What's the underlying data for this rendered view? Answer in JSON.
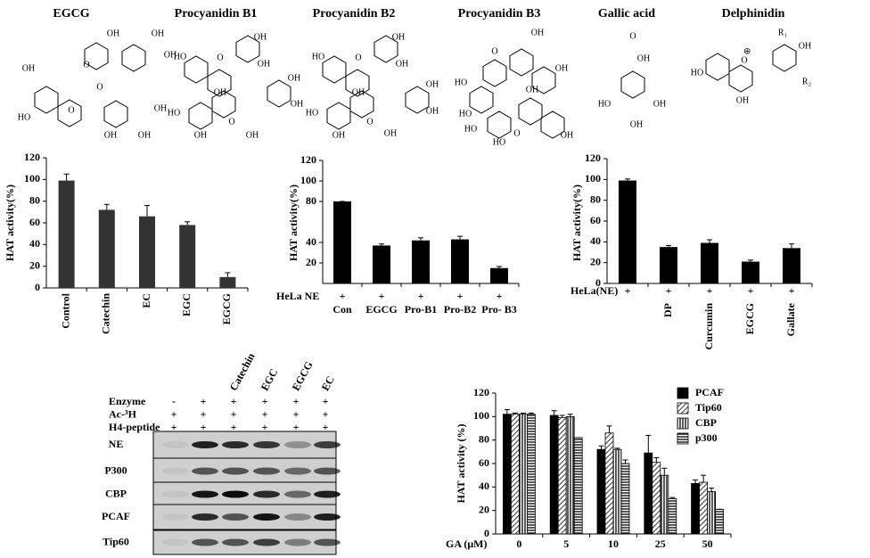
{
  "structures": [
    {
      "name": "EGCG",
      "labels": [
        "OH",
        "OH",
        "OH",
        "O",
        "O",
        "OH",
        "HO",
        "O",
        "OH",
        "OH",
        "OH"
      ]
    },
    {
      "name": "Procyanidin B1",
      "labels": [
        "OH",
        "OH",
        "HO",
        "O",
        "OH",
        "HO",
        "O",
        "OH",
        "OH",
        "OH",
        "OH"
      ]
    },
    {
      "name": "Procyanidin B2",
      "labels": [
        "OH",
        "OH",
        "HO",
        "O",
        "OH",
        "HO",
        "O",
        "OH",
        "OH",
        "OH",
        "OH"
      ]
    },
    {
      "name": "Procyanidin B3",
      "labels": [
        "OH",
        "O",
        "OH",
        "HO",
        "HO",
        "OH",
        "O",
        "OH",
        "HO",
        "HO"
      ]
    },
    {
      "name": "Gallic acid",
      "labels": [
        "O",
        "OH",
        "HO",
        "OH",
        "OH"
      ]
    },
    {
      "name": "Delphinidin",
      "labels": [
        "R₁",
        "OH",
        "HO",
        "O",
        "R₂",
        "OH"
      ]
    }
  ],
  "chart_data": [
    {
      "type": "bar",
      "ylabel": "HAT activity(%)",
      "categories": [
        "Control",
        "Catechin",
        "EC",
        "EGC",
        "EGCG"
      ],
      "values": [
        99,
        72,
        66,
        58,
        10
      ],
      "errors": [
        6,
        5,
        10,
        3,
        4
      ],
      "color": "#333333",
      "ylim": [
        0,
        120
      ],
      "yticks": [
        0,
        20,
        40,
        60,
        80,
        100,
        120
      ]
    },
    {
      "type": "bar",
      "ylabel": "HAT activity(%)",
      "row_label": "HeLa NE",
      "row_signs": [
        "+",
        "+",
        "+",
        "+",
        "+"
      ],
      "categories": [
        "Con",
        "EGCG",
        "Pro-B1",
        "Pro-B2",
        "Pro- B3"
      ],
      "values": [
        80,
        37,
        42,
        43,
        15
      ],
      "errors": [
        0,
        1.5,
        2.5,
        3,
        1.5
      ],
      "color": "#000000",
      "ylim": [
        0,
        120
      ],
      "yticks": [
        20,
        40,
        80,
        100,
        120
      ]
    },
    {
      "type": "bar",
      "ylabel": "HAT activity(%)",
      "row_label": "HeLa(NE)",
      "row_signs": [
        "+",
        "+",
        "+",
        "+",
        "+"
      ],
      "categories": [
        null,
        "DP",
        "Curcumin",
        "EGCG",
        "Gallate"
      ],
      "values": [
        99,
        35,
        39,
        21,
        34
      ],
      "errors": [
        1.5,
        1.5,
        3,
        1.5,
        4
      ],
      "color": "#000000",
      "ylim": [
        0,
        120
      ],
      "yticks": [
        0,
        20,
        40,
        60,
        80,
        100,
        120
      ]
    },
    {
      "type": "grouped_bar",
      "ylabel": "HAT activity (%)",
      "xlabel": "GA (μM)",
      "categories": [
        "0",
        "5",
        "10",
        "25",
        "50"
      ],
      "series": [
        {
          "name": "PCAF",
          "color": "#000000",
          "pattern": "solid",
          "values": [
            102,
            101,
            72,
            69,
            43
          ],
          "errors": [
            4,
            4,
            3,
            15,
            3
          ]
        },
        {
          "name": "Tip60",
          "color": "#000000",
          "pattern": "diagonal",
          "values": [
            102,
            99,
            86,
            61,
            44
          ],
          "errors": [
            1,
            2,
            6,
            4,
            6
          ]
        },
        {
          "name": "CBP",
          "color": "#000000",
          "pattern": "vertical",
          "values": [
            102,
            100,
            72,
            50,
            36
          ],
          "errors": [
            1,
            2,
            1,
            6,
            3
          ]
        },
        {
          "name": "p300",
          "color": "#000000",
          "pattern": "horizontal",
          "values": [
            102,
            82,
            60,
            30,
            21
          ],
          "errors": [
            1,
            0,
            3,
            1,
            0
          ]
        }
      ],
      "ylim": [
        0,
        120
      ],
      "yticks": [
        0,
        20,
        40,
        60,
        80,
        100,
        120
      ]
    }
  ],
  "blot": {
    "treatments": [
      "Catechin",
      "EGC",
      "EGCG",
      "EC"
    ],
    "conditions": [
      {
        "label": "Enzyme",
        "signs": [
          "-",
          "+",
          "+",
          "+",
          "+",
          "+"
        ]
      },
      {
        "label": "Ac-³H",
        "signs": [
          "+",
          "+",
          "+",
          "+",
          "+",
          "+"
        ]
      },
      {
        "label": "H4-peptide",
        "signs": [
          "+",
          "+",
          "+",
          "+",
          "+",
          "+"
        ]
      }
    ],
    "rows": [
      "NE",
      "P300",
      "CBP",
      "PCAF",
      "Tip60"
    ]
  }
}
